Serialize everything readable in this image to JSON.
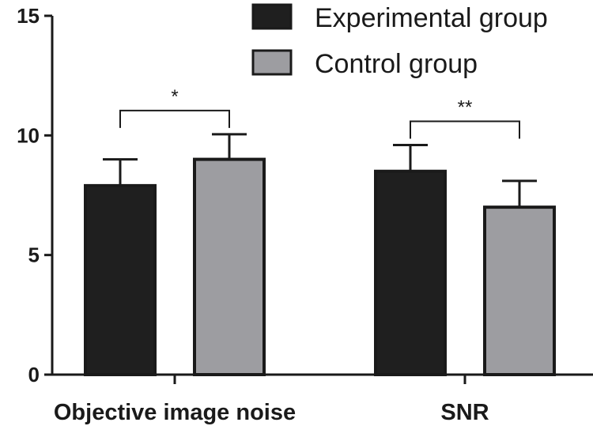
{
  "chart_data": {
    "type": "bar",
    "categories": [
      "Objective image noise",
      "SNR"
    ],
    "series": [
      {
        "name": "Experimental group",
        "color": "#1f1f1f",
        "values": [
          7.9,
          8.5
        ],
        "errors": [
          1.1,
          1.1
        ]
      },
      {
        "name": "Control group",
        "color": "#9d9da1",
        "values": [
          9.0,
          7.0
        ],
        "errors": [
          1.05,
          1.1
        ]
      }
    ],
    "ylim": [
      0,
      15
    ],
    "yticks": [
      0,
      5,
      10,
      15
    ],
    "title": "",
    "xlabel": "",
    "ylabel": "",
    "legend_position": "top-right",
    "significance": [
      {
        "category_index": 0,
        "label": "*"
      },
      {
        "category_index": 1,
        "label": "**"
      }
    ]
  }
}
